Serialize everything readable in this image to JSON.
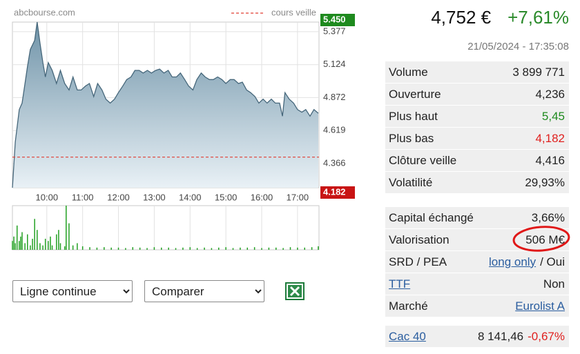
{
  "chart_data": [
    {
      "type": "area",
      "source": "abcbourse.com",
      "color": "#45667a",
      "x": [
        9.04,
        9.12,
        9.23,
        9.31,
        9.39,
        9.46,
        9.54,
        9.66,
        9.73,
        9.81,
        9.89,
        9.96,
        10.04,
        10.15,
        10.27,
        10.38,
        10.5,
        10.62,
        10.73,
        10.85,
        10.96,
        11.08,
        11.19,
        11.31,
        11.42,
        11.54,
        11.65,
        11.77,
        11.89,
        12.0,
        12.12,
        12.23,
        12.35,
        12.46,
        12.58,
        12.69,
        12.81,
        12.92,
        13.04,
        13.15,
        13.27,
        13.39,
        13.5,
        13.62,
        13.73,
        13.85,
        13.96,
        14.08,
        14.19,
        14.31,
        14.42,
        14.54,
        14.65,
        14.77,
        14.89,
        15.0,
        15.12,
        15.23,
        15.35,
        15.46,
        15.58,
        15.69,
        15.81,
        15.92,
        16.04,
        16.15,
        16.27,
        16.38,
        16.5,
        16.58,
        16.65,
        16.77,
        16.89,
        17.0,
        17.12,
        17.23,
        17.35,
        17.46,
        17.58
      ],
      "values": [
        4.182,
        4.53,
        4.78,
        4.83,
        4.98,
        5.11,
        5.24,
        5.31,
        5.45,
        5.29,
        5.14,
        5.03,
        5.14,
        5.08,
        4.98,
        5.08,
        4.98,
        4.93,
        5.03,
        4.93,
        4.93,
        4.96,
        4.98,
        4.88,
        4.98,
        4.93,
        4.86,
        4.83,
        4.86,
        4.91,
        4.96,
        5.01,
        5.03,
        5.08,
        5.08,
        5.06,
        5.08,
        5.06,
        5.08,
        5.09,
        5.06,
        5.08,
        5.03,
        5.03,
        5.06,
        5.01,
        4.96,
        4.93,
        5.01,
        5.06,
        5.03,
        5.01,
        5.01,
        5.03,
        5.01,
        4.98,
        5.01,
        5.01,
        4.98,
        4.99,
        4.93,
        4.91,
        4.88,
        4.83,
        4.86,
        4.83,
        4.86,
        4.83,
        4.83,
        4.73,
        4.91,
        4.86,
        4.83,
        4.78,
        4.76,
        4.78,
        4.73,
        4.78,
        4.752
      ],
      "reference_line": {
        "label": "cours veille",
        "value": 4.416,
        "color": "#e03c31"
      },
      "high": {
        "value": 5.45,
        "label": "5.450",
        "color": "#1e8a1e"
      },
      "low": {
        "value": 4.182,
        "color": "#c81414"
      },
      "xlim": [
        9.04,
        17.6
      ],
      "xticks": [
        {
          "value": 10,
          "label": "10:00"
        },
        {
          "value": 11,
          "label": "11:00"
        },
        {
          "value": 12,
          "label": "12:00"
        },
        {
          "value": 13,
          "label": "13:00"
        },
        {
          "value": 14,
          "label": "14:00"
        },
        {
          "value": 15,
          "label": "15:00"
        },
        {
          "value": 16,
          "label": "16:00"
        },
        {
          "value": 17,
          "label": "17:00"
        }
      ],
      "ylim": [
        4.182,
        5.45
      ],
      "yticks": [
        4.366,
        4.619,
        4.872,
        5.124,
        5.377
      ],
      "grid": true
    },
    {
      "type": "bar",
      "color": "#22a022",
      "x": [
        9.04,
        9.08,
        9.12,
        9.17,
        9.23,
        9.27,
        9.31,
        9.39,
        9.46,
        9.54,
        9.6,
        9.66,
        9.73,
        9.81,
        9.89,
        9.96,
        10.04,
        10.1,
        10.15,
        10.27,
        10.33,
        10.38,
        10.5,
        10.54,
        10.62,
        10.73,
        10.85,
        11.0,
        11.2,
        11.4,
        11.6,
        11.8,
        12.0,
        12.2,
        12.4,
        12.6,
        12.8,
        13.0,
        13.2,
        13.4,
        13.6,
        13.8,
        14.0,
        14.2,
        14.4,
        14.6,
        14.8,
        15.0,
        15.2,
        15.4,
        15.6,
        15.8,
        16.0,
        16.2,
        16.4,
        16.6,
        16.8,
        17.0,
        17.2,
        17.4,
        17.58
      ],
      "values": [
        20,
        30,
        15,
        55,
        20,
        30,
        40,
        15,
        35,
        10,
        25,
        70,
        45,
        15,
        10,
        25,
        20,
        30,
        10,
        35,
        45,
        15,
        8,
        100,
        60,
        10,
        15,
        8,
        6,
        5,
        6,
        5,
        5,
        4,
        6,
        5,
        4,
        6,
        5,
        5,
        4,
        5,
        6,
        4,
        5,
        4,
        5,
        6,
        4,
        5,
        5,
        6,
        4,
        5,
        5,
        4,
        6,
        5,
        5,
        6,
        8
      ],
      "xlim": [
        9.04,
        17.6
      ],
      "ylim": [
        0,
        100
      ]
    }
  ],
  "quote": {
    "price": "4,752 €",
    "change": "+7,61%",
    "time": "21/05/2024 - 17:35:08"
  },
  "stats": [
    {
      "label": "Volume",
      "value": "3 899 771"
    },
    {
      "label": "Ouverture",
      "value": "4,236"
    },
    {
      "label": "Plus haut",
      "value": "5,45",
      "color": "#1e8a1e"
    },
    {
      "label": "Plus bas",
      "value": "4,182",
      "color": "#e0201e"
    },
    {
      "label": "Clôture veille",
      "value": "4,416"
    },
    {
      "label": "Volatilité",
      "value": "29,93%"
    }
  ],
  "stats2": [
    {
      "label": "Capital échangé",
      "value": "3,66%"
    },
    {
      "label": "Valorisation",
      "value": "506 M€"
    },
    {
      "label": "SRD / PEA",
      "value": "long only",
      "value_link": true,
      "suffix": "/ Oui"
    },
    {
      "label": "TTF",
      "label_link": true,
      "value": "Non"
    },
    {
      "label": "Marché",
      "value": "Eurolist A",
      "value_link": true
    }
  ],
  "index": {
    "name": "Cac 40",
    "value": "8 141,46",
    "change": "-0,67%",
    "change_color": "#e0201e"
  },
  "controls": {
    "chart_style": "Ligne continue",
    "compare": "Comparer"
  }
}
